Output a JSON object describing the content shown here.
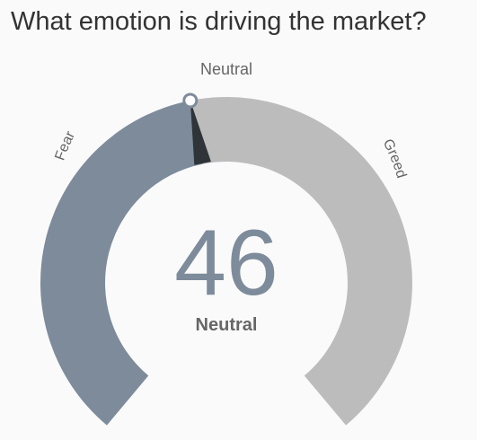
{
  "header": {
    "title": "What emotion is driving the market?"
  },
  "gauge": {
    "value": 46,
    "range": [
      0,
      100
    ],
    "value_text": "46",
    "state_label": "Neutral",
    "top_label": "Neutral",
    "left_label": "Fear",
    "right_label": "Greed",
    "colors": {
      "fear": "#7d8b9b",
      "greed": "#bcbcbc",
      "value_text": "#7d8b9b",
      "state_text": "#666666",
      "label_text": "#666666",
      "needle": "#2f3438",
      "marker_fill": "#ffffff",
      "marker_stroke": "#7d8b9b"
    }
  }
}
